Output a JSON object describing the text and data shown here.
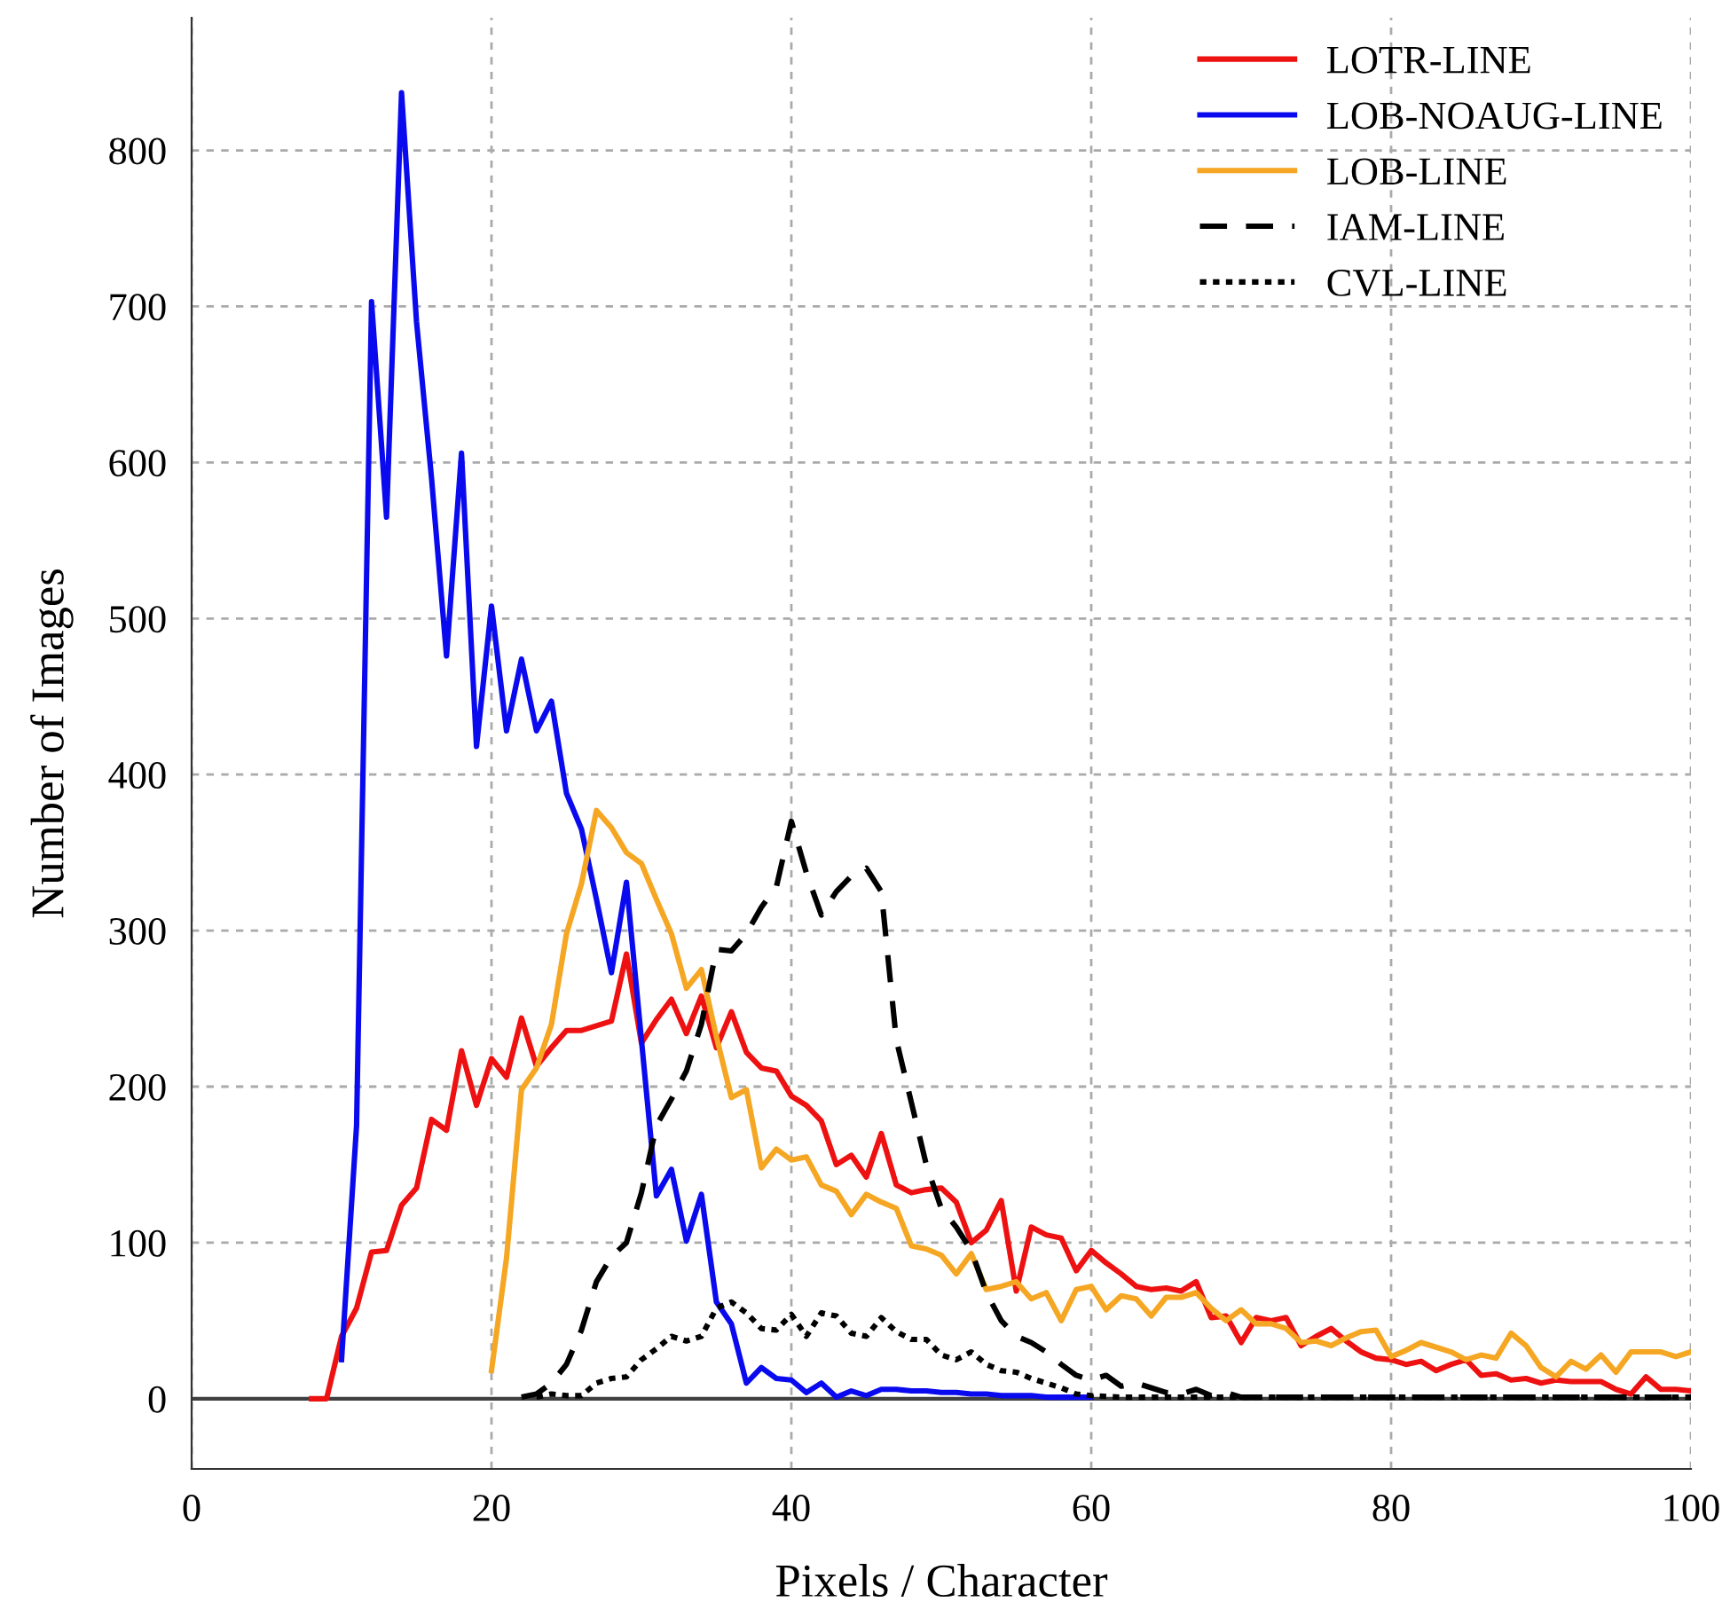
{
  "chart_data": {
    "type": "line",
    "xlabel": "Pixels / Character",
    "ylabel": "Number of Images",
    "xlim": [
      0,
      100
    ],
    "ylim": [
      -45,
      885
    ],
    "xticks": [
      0,
      20,
      40,
      60,
      80,
      100
    ],
    "yticks": [
      0,
      100,
      200,
      300,
      400,
      500,
      600,
      700,
      800
    ],
    "grid": true,
    "legend": "top right",
    "ref_lines": [
      {
        "axis": "y",
        "value": 0,
        "color": "#404040"
      }
    ],
    "series": [
      {
        "name": "LOTR-LINE",
        "color": "#ee1111",
        "line_style": "solid",
        "x": [
          8,
          9,
          10,
          11,
          12,
          13,
          14,
          15,
          16,
          17,
          18,
          19,
          20,
          21,
          22,
          23,
          24,
          25,
          26,
          27,
          28,
          29,
          30,
          31,
          32,
          33,
          34,
          35,
          36,
          37,
          38,
          39,
          40,
          41,
          42,
          43,
          44,
          45,
          46,
          47,
          48,
          49,
          50,
          51,
          52,
          53,
          54,
          55,
          56,
          57,
          58,
          59,
          60,
          61,
          62,
          63,
          64,
          65,
          66,
          67,
          68,
          69,
          70,
          71,
          72,
          73,
          74,
          75,
          76,
          77,
          78,
          79,
          80,
          81,
          82,
          83,
          84,
          85,
          86,
          87,
          88,
          89,
          90,
          91,
          92,
          93,
          94,
          95,
          96,
          97,
          98,
          99,
          100
        ],
        "values": [
          0,
          0,
          40,
          58,
          94,
          95,
          124,
          135,
          179,
          172,
          223,
          188,
          218,
          206,
          244,
          213,
          225,
          236,
          236,
          239,
          242,
          285,
          228,
          243,
          256,
          234,
          258,
          225,
          248,
          222,
          212,
          210,
          194,
          188,
          178,
          150,
          156,
          142,
          170,
          137,
          132,
          134,
          135,
          126,
          100,
          108,
          127,
          69,
          110,
          105,
          103,
          82,
          95,
          87,
          80,
          72,
          70,
          71,
          69,
          75,
          52,
          53,
          36,
          52,
          50,
          52,
          34,
          40,
          45,
          37,
          30,
          26,
          25,
          22,
          24,
          18,
          22,
          25,
          15,
          16,
          12,
          13,
          10,
          12,
          11,
          11,
          11,
          6,
          3,
          14,
          6,
          6,
          5
        ]
      },
      {
        "name": "LOB-NOAUG-LINE",
        "color": "#0a0aee",
        "line_style": "solid",
        "x": [
          10,
          11,
          12,
          13,
          14,
          15,
          16,
          17,
          18,
          19,
          20,
          21,
          22,
          23,
          24,
          25,
          26,
          27,
          28,
          29,
          30,
          31,
          32,
          33,
          34,
          35,
          36,
          37,
          38,
          39,
          40,
          41,
          42,
          43,
          44,
          45,
          46,
          47,
          48,
          49,
          50,
          51,
          52,
          53,
          54,
          55,
          56,
          57,
          58,
          59,
          60
        ],
        "values": [
          25,
          175,
          703,
          565,
          837,
          690,
          590,
          476,
          606,
          418,
          508,
          428,
          474,
          428,
          447,
          388,
          365,
          320,
          273,
          331,
          230,
          130,
          147,
          101,
          131,
          62,
          48,
          10,
          20,
          13,
          12,
          4,
          10,
          1,
          5,
          2,
          6,
          6,
          5,
          5,
          4,
          4,
          3,
          3,
          2,
          2,
          2,
          1,
          1,
          1,
          1
        ]
      },
      {
        "name": "LOB-LINE",
        "color": "#f5a623",
        "line_style": "solid",
        "x": [
          20,
          21,
          22,
          23,
          24,
          25,
          26,
          27,
          28,
          29,
          30,
          31,
          32,
          33,
          34,
          35,
          36,
          37,
          38,
          39,
          40,
          41,
          42,
          43,
          44,
          45,
          46,
          47,
          48,
          49,
          50,
          51,
          52,
          53,
          54,
          55,
          56,
          57,
          58,
          59,
          60,
          61,
          62,
          63,
          64,
          65,
          66,
          67,
          68,
          69,
          70,
          71,
          72,
          73,
          74,
          75,
          76,
          77,
          78,
          79,
          80,
          81,
          82,
          83,
          84,
          85,
          86,
          87,
          88,
          89,
          90,
          91,
          92,
          93,
          94,
          95,
          96,
          97,
          98,
          99,
          100
        ],
        "values": [
          18,
          90,
          198,
          212,
          240,
          298,
          330,
          377,
          366,
          350,
          343,
          320,
          298,
          263,
          275,
          232,
          193,
          198,
          148,
          160,
          153,
          155,
          137,
          133,
          118,
          131,
          126,
          122,
          98,
          96,
          92,
          80,
          93,
          70,
          72,
          75,
          64,
          68,
          50,
          70,
          72,
          57,
          66,
          64,
          53,
          65,
          65,
          68,
          58,
          50,
          57,
          48,
          48,
          45,
          36,
          37,
          34,
          39,
          43,
          44,
          27,
          31,
          36,
          33,
          30,
          25,
          28,
          26,
          42,
          34,
          20,
          14,
          24,
          19,
          28,
          17,
          30,
          30,
          30,
          27,
          30
        ]
      },
      {
        "name": "IAM-LINE",
        "color": "#000000",
        "line_style": "dashed",
        "x": [
          22,
          23,
          24,
          25,
          26,
          27,
          28,
          29,
          30,
          31,
          32,
          33,
          34,
          35,
          36,
          37,
          38,
          39,
          40,
          41,
          42,
          43,
          44,
          45,
          46,
          47,
          48,
          49,
          50,
          51,
          52,
          53,
          54,
          55,
          56,
          57,
          58,
          59,
          60,
          61,
          62,
          63,
          64,
          65,
          66,
          67,
          68,
          69,
          70,
          75,
          80,
          90,
          100
        ],
        "values": [
          1,
          3,
          10,
          22,
          44,
          75,
          91,
          100,
          132,
          175,
          192,
          210,
          240,
          288,
          287,
          298,
          315,
          328,
          370,
          337,
          310,
          325,
          335,
          340,
          325,
          230,
          190,
          150,
          122,
          110,
          95,
          68,
          50,
          40,
          36,
          30,
          22,
          15,
          12,
          15,
          8,
          10,
          7,
          4,
          3,
          6,
          2,
          4,
          1,
          1,
          1,
          1,
          1
        ]
      },
      {
        "name": "CVL-LINE",
        "color": "#000000",
        "line_style": "dotted",
        "x": [
          23,
          24,
          25,
          26,
          27,
          28,
          29,
          30,
          31,
          32,
          33,
          34,
          35,
          36,
          37,
          38,
          39,
          40,
          41,
          42,
          43,
          44,
          45,
          46,
          47,
          48,
          49,
          50,
          51,
          52,
          53,
          54,
          55,
          56,
          57,
          58,
          59,
          60,
          62,
          65,
          70,
          80,
          90,
          100
        ],
        "values": [
          1,
          3,
          2,
          2,
          10,
          13,
          14,
          25,
          32,
          40,
          37,
          40,
          58,
          62,
          55,
          45,
          44,
          54,
          40,
          55,
          53,
          42,
          40,
          52,
          43,
          38,
          38,
          28,
          25,
          30,
          22,
          18,
          17,
          13,
          10,
          7,
          3,
          2,
          1,
          1,
          1,
          1,
          1,
          1
        ]
      }
    ]
  }
}
